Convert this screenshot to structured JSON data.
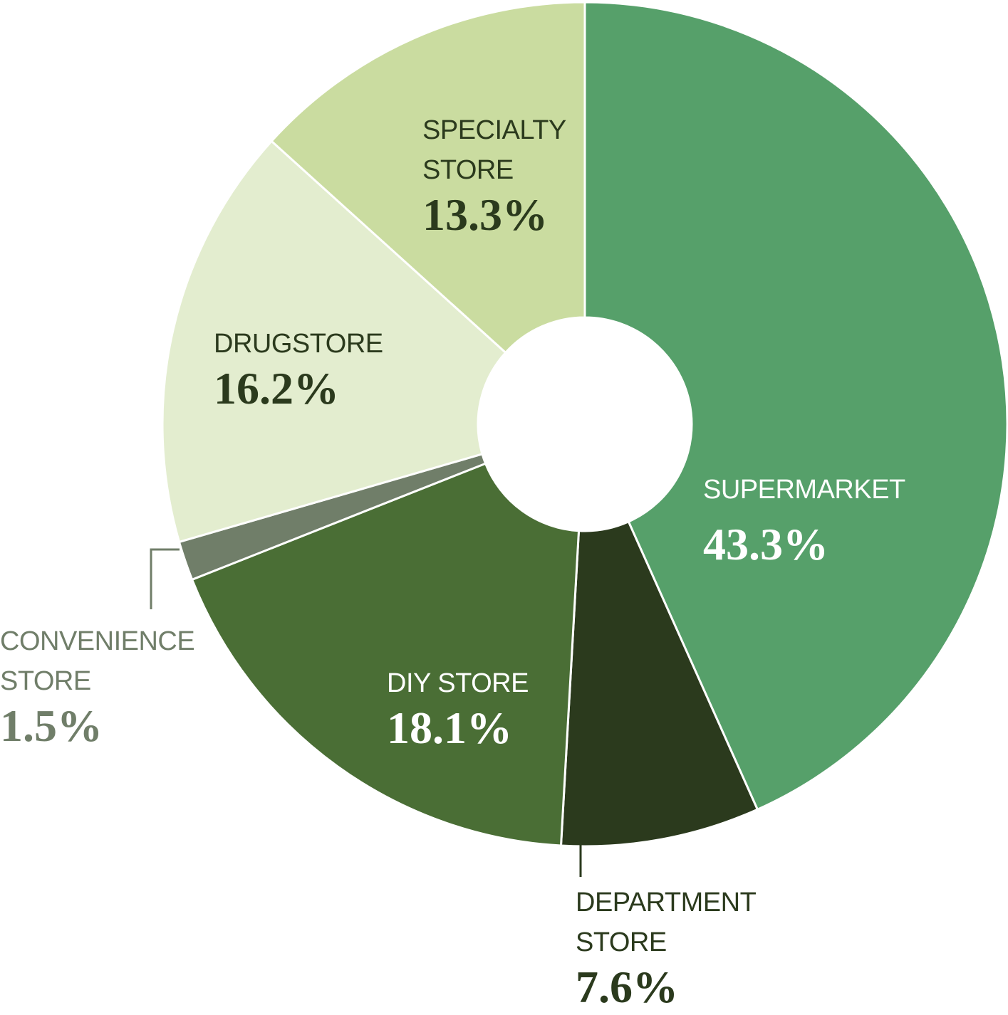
{
  "chart_data": {
    "type": "donut",
    "categories": [
      "SUPERMARKET",
      "DEPARTMENT STORE",
      "DIY STORE",
      "CONVENIENCE STORE",
      "DRUGSTORE",
      "SPECIALTY STORE"
    ],
    "values": [
      43.3,
      7.6,
      18.1,
      1.5,
      16.2,
      13.3
    ],
    "value_labels": [
      "43.3%",
      "7.6%",
      "18.1%",
      "1.5%",
      "16.2%",
      "13.3%"
    ],
    "colors": [
      "#56a06a",
      "#2b3a1d",
      "#4a6e35",
      "#707e69",
      "#e3edcf",
      "#cadca0"
    ]
  }
}
